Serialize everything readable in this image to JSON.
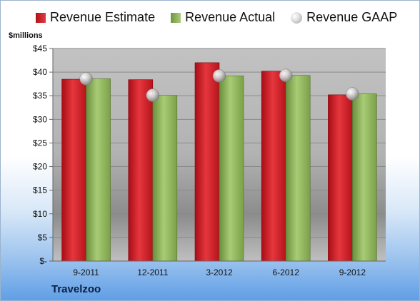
{
  "legend": {
    "estimate": "Revenue Estimate",
    "actual": "Revenue Actual",
    "gaap": "Revenue GAAP"
  },
  "unit_label": "$millions",
  "company": "Travelzoo",
  "colors": {
    "estimate": "#c81e25",
    "actual": "#8fb55a",
    "gaap": "#c8c8c8",
    "plot_bg": "#b4b4b4"
  },
  "chart_data": {
    "type": "bar",
    "categories": [
      "9-2011",
      "12-2011",
      "3-2012",
      "6-2012",
      "9-2012"
    ],
    "series": [
      {
        "name": "Revenue Estimate",
        "values": [
          38.5,
          38.4,
          42.0,
          40.2,
          35.2
        ]
      },
      {
        "name": "Revenue Actual",
        "values": [
          38.6,
          35.1,
          39.2,
          39.3,
          35.4
        ]
      },
      {
        "name": "Revenue GAAP",
        "values": [
          38.6,
          35.1,
          39.2,
          39.3,
          35.4
        ]
      }
    ],
    "ylabel": "$millions",
    "ylim": [
      0,
      45
    ],
    "yticks": [
      0,
      5,
      10,
      15,
      20,
      25,
      30,
      35,
      40,
      45
    ],
    "ytick_labels": [
      "$-",
      "$5",
      "$10",
      "$15",
      "$20",
      "$25",
      "$30",
      "$35",
      "$40",
      "$45"
    ],
    "grid": true,
    "legend_position": "top"
  }
}
